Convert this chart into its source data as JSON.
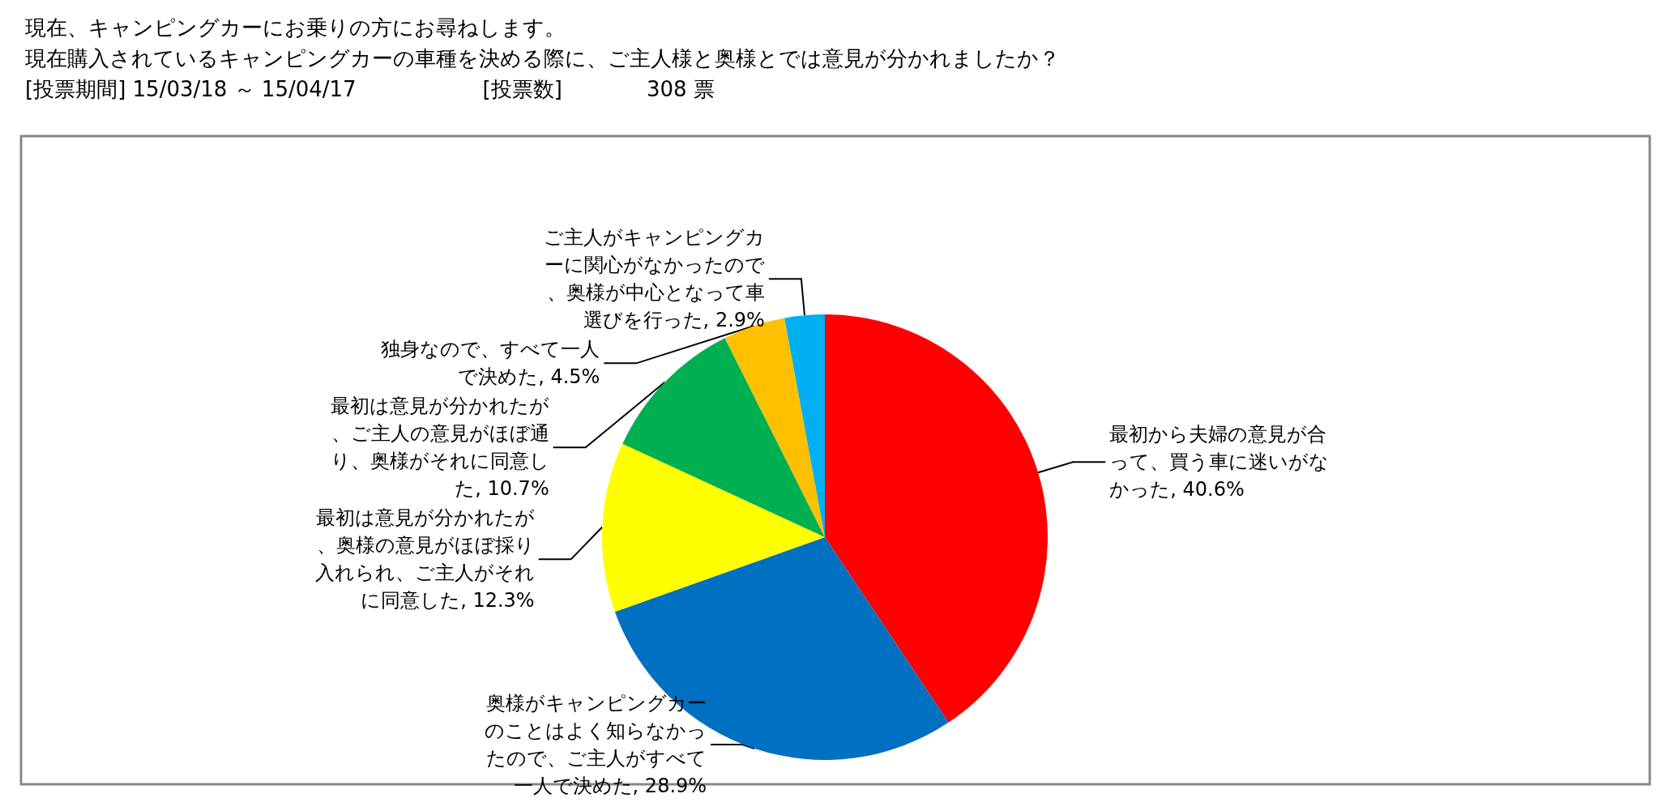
{
  "chart_data": {
    "type": "pie",
    "title": "現在、キャンピングカーにお乗りの方にお尋ねします。",
    "subtitle": "現在購入されているキャンピングカーの車種を決める際に、ご主人様と奥様とでは意見が分かれましたか？",
    "annotations": [
      "[投票期間] 15/03/18 ～ 15/04/17　　　　　　[投票数]　　　　308 票"
    ],
    "categories": [
      "最初から夫婦の意見が合って、買う車に迷いがなかった",
      "奥様がキャンピングカーのことはよく知らなかったので、ご主人がすべて一人で決めた",
      "最初は意見が分かれたが、奥様の意見がほぼ採り入れられ、ご主人がそれに同意した",
      "最初は意見が分かれたが、ご主人の意見がほぼ通り、奥様がそれに同意した",
      "独身なので、すべて一人で決めた",
      "ご主人がキャンピングカーに関心がなかったので、奥様が中心となって車選びを行った"
    ],
    "values": [
      40.6,
      28.9,
      12.3,
      10.7,
      4.5,
      2.9
    ],
    "colors": [
      "#ff0000",
      "#0070c0",
      "#ffff00",
      "#00b050",
      "#ffc000",
      "#00b0f0"
    ],
    "value_labels": [
      "40.6%",
      "28.9%",
      "12.3%",
      "10.7%",
      "4.5%",
      "2.9%"
    ],
    "legend": false
  }
}
